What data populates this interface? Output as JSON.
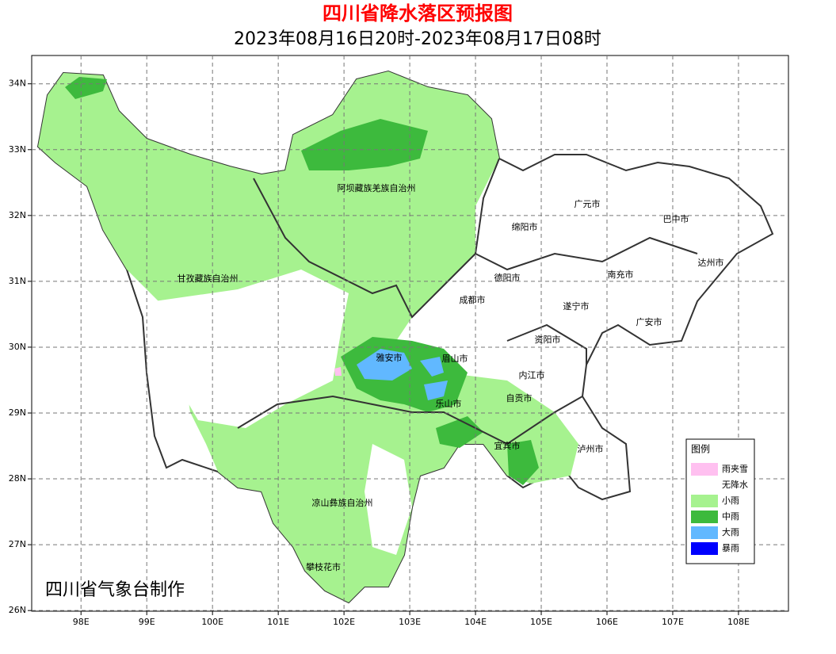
{
  "title": "四川省降水落区预报图",
  "subtitle": "2023年08月16日20时-2023年08月17日08时",
  "map": {
    "xlim": [
      97.25,
      108.76
    ],
    "ylim": [
      25.99,
      34.43
    ],
    "xticks": [
      {
        "value": 98,
        "label": "98E"
      },
      {
        "value": 99,
        "label": "99E"
      },
      {
        "value": 100,
        "label": "100E"
      },
      {
        "value": 101,
        "label": "101E"
      },
      {
        "value": 102,
        "label": "102E"
      },
      {
        "value": 103,
        "label": "103E"
      },
      {
        "value": 104,
        "label": "104E"
      },
      {
        "value": 105,
        "label": "105E"
      },
      {
        "value": 106,
        "label": "106E"
      },
      {
        "value": 107,
        "label": "107E"
      },
      {
        "value": 108,
        "label": "108E"
      }
    ],
    "yticks": [
      {
        "value": 26,
        "label": "26N"
      },
      {
        "value": 27,
        "label": "27N"
      },
      {
        "value": 28,
        "label": "28N"
      },
      {
        "value": 29,
        "label": "29N"
      },
      {
        "value": 30,
        "label": "30N"
      },
      {
        "value": 31,
        "label": "31N"
      },
      {
        "value": 32,
        "label": "32N"
      },
      {
        "value": 33,
        "label": "33N"
      },
      {
        "value": 34,
        "label": "34N"
      }
    ],
    "grid": true,
    "regions": [
      "阿坝藏族羌族自治州",
      "甘孜藏族自治州",
      "凉山彝族自治州",
      "攀枝花市",
      "广元市",
      "巴中市",
      "绵阳市",
      "达州市",
      "德阳市",
      "南充市",
      "成都市",
      "遂宁市",
      "广安市",
      "资阳市",
      "雅安市",
      "眉山市",
      "内江市",
      "自贡市",
      "乐山市",
      "宜宾市",
      "泸州市"
    ]
  },
  "legend": {
    "title": "图例",
    "items": [
      {
        "name": "雨夹雪",
        "color": "#ffc0f0"
      },
      {
        "name": "无降水",
        "color": "#ffffff"
      },
      {
        "name": "小雨",
        "color": "#a6f28f"
      },
      {
        "name": "中雨",
        "color": "#3dba3d"
      },
      {
        "name": "大雨",
        "color": "#61b8ff"
      },
      {
        "name": "暴雨",
        "color": "#0000fe"
      }
    ]
  },
  "credit": "四川省气象台制作"
}
